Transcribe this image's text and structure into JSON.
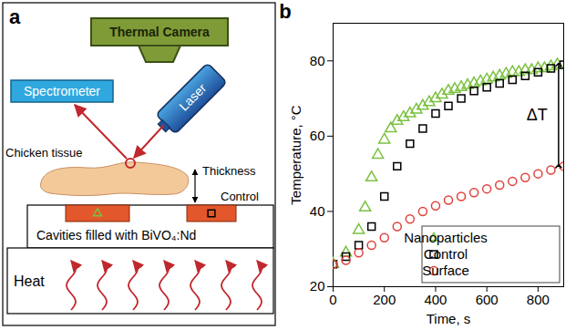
{
  "panel_a": {
    "letter": "a",
    "thermal_camera": "Thermal Camera",
    "spectrometer": "Spectrometer",
    "laser": "Laser",
    "tissue": "Chicken tissue",
    "thickness": "Thickness",
    "control": "Control",
    "cavities": "Cavities filled with BiVO₄:Nd",
    "heat": "Heat"
  },
  "chart_data": {
    "type": "scatter",
    "panel": "b",
    "x_label": "Time, s",
    "y_label": "Temperature, °C",
    "xlim": [
      0,
      900
    ],
    "xticks": [
      0,
      200,
      400,
      600,
      800
    ],
    "ylim": [
      20,
      90
    ],
    "yticks": [
      20,
      40,
      60,
      80
    ],
    "grid": false,
    "legend": "bottom-right",
    "series": [
      {
        "name": "Nanoparticles",
        "color": "#7cc142",
        "marker": "triangle",
        "x": [
          0,
          50,
          100,
          125,
          150,
          175,
          200,
          225,
          250,
          275,
          300,
          325,
          350,
          375,
          400,
          425,
          450,
          475,
          500,
          525,
          550,
          575,
          600,
          625,
          650,
          675,
          700,
          725,
          750,
          775,
          800,
          825,
          850,
          875
        ],
        "values": [
          26,
          29,
          35,
          41,
          49,
          55,
          59,
          62,
          64,
          65,
          66,
          67,
          68,
          69,
          70,
          71,
          72,
          72.5,
          73,
          73.5,
          74,
          74.5,
          75,
          75.5,
          76,
          76.5,
          77,
          77,
          77.5,
          77.5,
          78,
          78,
          78.5,
          79
        ]
      },
      {
        "name": "Control",
        "color": "#000000",
        "marker": "square",
        "x": [
          0,
          50,
          100,
          150,
          200,
          250,
          300,
          350,
          400,
          450,
          500,
          550,
          600,
          650,
          700,
          750,
          800,
          850,
          900
        ],
        "values": [
          26,
          28,
          31,
          36,
          44,
          52,
          58,
          62,
          66,
          68,
          70,
          72,
          73,
          74,
          75,
          76,
          77,
          78,
          79
        ]
      },
      {
        "name": "Surface",
        "color": "#e0403a",
        "marker": "circle",
        "x": [
          0,
          50,
          100,
          150,
          200,
          250,
          300,
          350,
          400,
          450,
          500,
          550,
          600,
          650,
          700,
          750,
          800,
          850,
          900
        ],
        "values": [
          26,
          27,
          29,
          31,
          33,
          36,
          38,
          40,
          41.5,
          43,
          44,
          45,
          46,
          47,
          48,
          49,
          50,
          51,
          52
        ]
      }
    ],
    "annotation": {
      "text": "ΔT",
      "x": 880,
      "y1": 52,
      "y2": 79
    }
  }
}
